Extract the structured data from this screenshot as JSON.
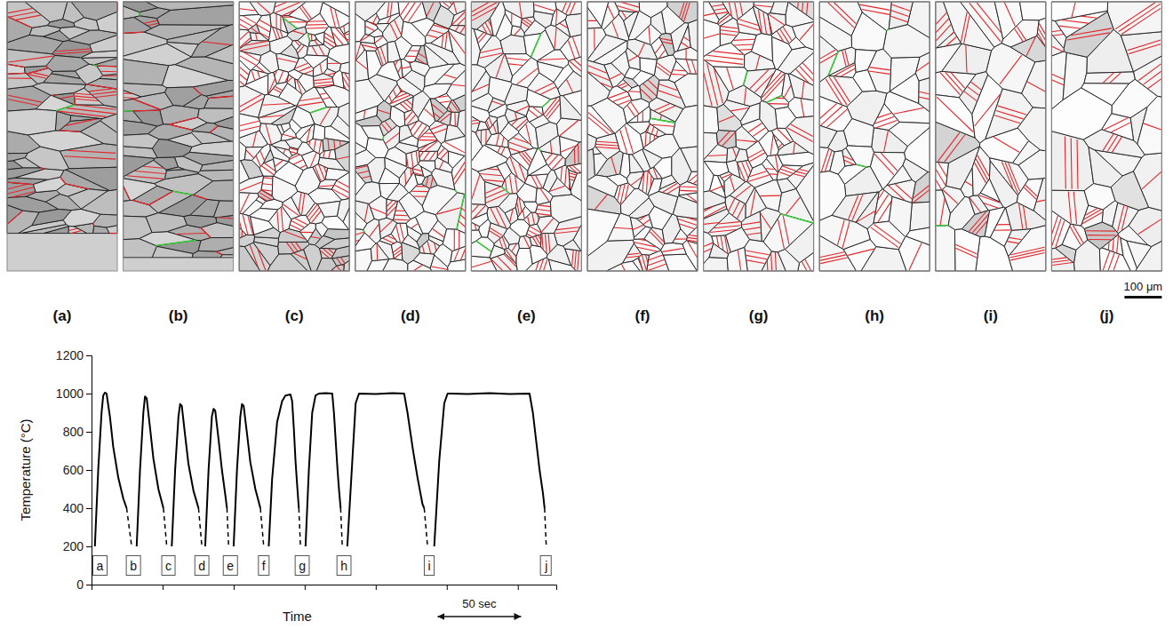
{
  "chart_data": {
    "type": "line",
    "y_label": "Temperature (°C)",
    "x_label": "Time",
    "xlim": [
      0,
      278
    ],
    "xticks": [
      0,
      42.5,
      85,
      127.5,
      170,
      212.5,
      255
    ],
    "ylim": [
      0,
      1200
    ],
    "yticks": [
      0,
      200,
      400,
      600,
      800,
      1000,
      1200
    ],
    "grid": false,
    "tick_labels": "y",
    "series": [
      {
        "color": "#000000",
        "line_style": "solid",
        "x": [
          2,
          4,
          6,
          7,
          8,
          9,
          11,
          13,
          16,
          19,
          21,
          22,
          27,
          29,
          31,
          32,
          33,
          35,
          37,
          40,
          43,
          44,
          48,
          50,
          52,
          53,
          54,
          56,
          58,
          61,
          64,
          65,
          68,
          70,
          72,
          73,
          74,
          76,
          78,
          80,
          81,
          82,
          85,
          87,
          89,
          90,
          91,
          93,
          95,
          98,
          101,
          102,
          106,
          108,
          111,
          114,
          116,
          119,
          120,
          121,
          122,
          123,
          124,
          125,
          128,
          130,
          132,
          134,
          136,
          140,
          144,
          145,
          146,
          147,
          148,
          149,
          150,
          153,
          156,
          158,
          160,
          170,
          180,
          187,
          189,
          192,
          195,
          198,
          199,
          200,
          205,
          208,
          211,
          213,
          225,
          238,
          250,
          262,
          264,
          266,
          268,
          270,
          271
        ],
        "values": [
          200,
          600,
          900,
          990,
          1005,
          1000,
          880,
          720,
          560,
          450,
          400,
          null,
          200,
          600,
          900,
          985,
          975,
          820,
          660,
          500,
          400,
          null,
          200,
          600,
          880,
          945,
          935,
          780,
          630,
          490,
          400,
          null,
          200,
          600,
          880,
          920,
          910,
          760,
          600,
          470,
          400,
          null,
          200,
          600,
          880,
          945,
          935,
          790,
          640,
          500,
          400,
          null,
          200,
          550,
          850,
          960,
          990,
          995,
          960,
          820,
          650,
          520,
          400,
          null,
          200,
          600,
          900,
          990,
          1000,
          1002,
          1000,
          900,
          760,
          620,
          500,
          400,
          null,
          200,
          650,
          950,
          1000,
          998,
          1002,
          1000,
          900,
          720,
          560,
          420,
          400,
          null,
          200,
          650,
          950,
          1000,
          998,
          1002,
          998,
          1000,
          900,
          750,
          600,
          480,
          400
        ]
      },
      {
        "color": "#000000",
        "line_style": "dashed",
        "x": [
          21,
          24,
          25,
          43,
          45,
          46,
          64,
          66,
          67,
          81,
          82,
          83,
          101,
          103,
          104,
          124,
          125,
          126,
          149,
          150,
          151,
          199,
          201,
          202,
          271,
          272
        ],
        "values": [
          400,
          200,
          null,
          400,
          200,
          null,
          400,
          200,
          null,
          400,
          200,
          null,
          400,
          200,
          null,
          400,
          200,
          null,
          400,
          200,
          null,
          400,
          200,
          null,
          400,
          200
        ]
      }
    ],
    "annotations": [
      {
        "text": "a",
        "x": 5,
        "y": 100
      },
      {
        "text": "b",
        "x": 25,
        "y": 100
      },
      {
        "text": "c",
        "x": 46,
        "y": 100
      },
      {
        "text": "d",
        "x": 66,
        "y": 100
      },
      {
        "text": "e",
        "x": 83,
        "y": 100
      },
      {
        "text": "f",
        "x": 103,
        "y": 100
      },
      {
        "text": "g",
        "x": 126,
        "y": 100
      },
      {
        "text": "h",
        "x": 151,
        "y": 100
      },
      {
        "text": "i",
        "x": 202,
        "y": 100
      },
      {
        "text": "j",
        "x": 272,
        "y": 100
      }
    ],
    "scale_bar": {
      "label": "50 sec",
      "from": 207,
      "to": 257
    }
  },
  "micrographs": {
    "panels": [
      "(a)",
      "(b)",
      "(c)",
      "(d)",
      "(e)",
      "(f)",
      "(g)",
      "(h)",
      "(i)",
      "(j)"
    ],
    "scale_bar": "100 μm"
  }
}
